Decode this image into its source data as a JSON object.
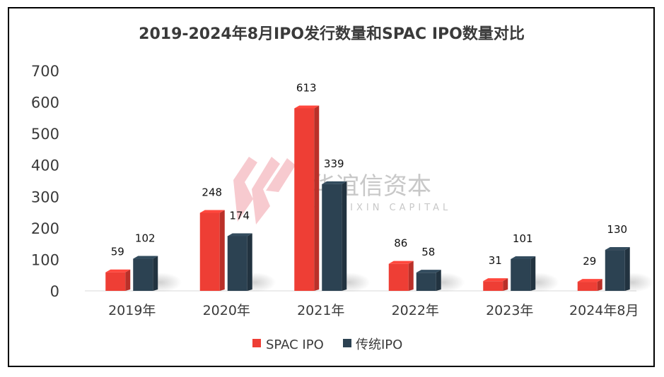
{
  "chart_data": {
    "type": "bar",
    "title": "2019-2024年8月IPO发行数量和SPAC IPO数量对比",
    "categories": [
      "2019年",
      "2020年",
      "2021年",
      "2022年",
      "2023年",
      "2024年8月"
    ],
    "series": [
      {
        "name": "SPAC IPO",
        "values": [
          59,
          248,
          613,
          86,
          31,
          29
        ],
        "color": "#ee3e35"
      },
      {
        "name": "传统IPO",
        "values": [
          102,
          174,
          339,
          58,
          101,
          130
        ],
        "color": "#2c4252"
      }
    ],
    "yticks": [
      0,
      100,
      200,
      300,
      400,
      500,
      600,
      700
    ],
    "ylim": [
      0,
      700
    ],
    "xlabel": "",
    "ylabel": "",
    "grid": false,
    "legend": "bottom"
  },
  "watermark": {
    "name_cn": "华谊信资本",
    "name_en": "HUAYIXIN CAPITAL"
  }
}
